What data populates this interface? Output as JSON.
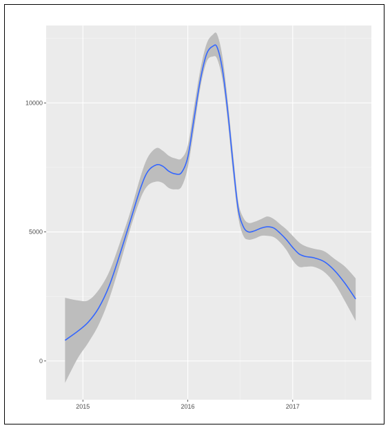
{
  "chart_data": {
    "type": "line",
    "title": "",
    "xlabel": "",
    "ylabel": "",
    "x_ticks": [
      2015,
      2016,
      2017
    ],
    "y_ticks": [
      0,
      5000,
      10000
    ],
    "x_tick_labels": [
      "2015",
      "2016",
      "2017"
    ],
    "y_tick_labels": [
      "0",
      "5000",
      "10000"
    ],
    "xlim": [
      2014.65,
      2017.75
    ],
    "ylim": [
      -1500,
      13000
    ],
    "grid": true,
    "legend": "none",
    "series": [
      {
        "x": [
          2014.83,
          2014.95,
          2015.05,
          2015.15,
          2015.25,
          2015.35,
          2015.45,
          2015.55,
          2015.62,
          2015.7,
          2015.76,
          2015.82,
          2015.88,
          2015.94,
          2016.0,
          2016.06,
          2016.12,
          2016.18,
          2016.24,
          2016.28,
          2016.33,
          2016.38,
          2016.43,
          2016.48,
          2016.53,
          2016.58,
          2016.64,
          2016.7,
          2016.76,
          2016.82,
          2016.88,
          2016.94,
          2017.0,
          2017.06,
          2017.12,
          2017.2,
          2017.3,
          2017.4,
          2017.5,
          2017.6
        ],
        "y": [
          800,
          1150,
          1500,
          2050,
          2900,
          4100,
          5400,
          6700,
          7350,
          7600,
          7550,
          7350,
          7250,
          7300,
          7900,
          9400,
          10900,
          11900,
          12200,
          12150,
          11300,
          9700,
          7700,
          5900,
          5200,
          5000,
          5050,
          5150,
          5200,
          5150,
          4950,
          4700,
          4400,
          4150,
          4050,
          4000,
          3850,
          3500,
          3000,
          2400
        ],
        "lower": [
          -850,
          100,
          700,
          1400,
          2400,
          3700,
          5100,
          6300,
          6800,
          6950,
          6900,
          6700,
          6650,
          6750,
          7500,
          9000,
          10600,
          11600,
          11800,
          11700,
          10900,
          9300,
          7300,
          5600,
          4850,
          4700,
          4750,
          4850,
          4850,
          4800,
          4600,
          4300,
          3900,
          3650,
          3650,
          3650,
          3450,
          3000,
          2300,
          1550
        ],
        "upper": [
          2450,
          2350,
          2350,
          2750,
          3450,
          4550,
          5750,
          7150,
          7900,
          8250,
          8150,
          7950,
          7850,
          7850,
          8350,
          9850,
          11300,
          12300,
          12650,
          12650,
          11800,
          10100,
          8100,
          6200,
          5550,
          5350,
          5400,
          5500,
          5600,
          5500,
          5300,
          5100,
          4850,
          4600,
          4450,
          4350,
          4250,
          3950,
          3650,
          3200
        ]
      }
    ]
  },
  "colors": {
    "panel_bg": "#ebebeb",
    "grid_major": "#ffffff",
    "grid_minor": "#f5f5f5",
    "band_fill": "#bdbdbd",
    "line": "#3366ff"
  }
}
